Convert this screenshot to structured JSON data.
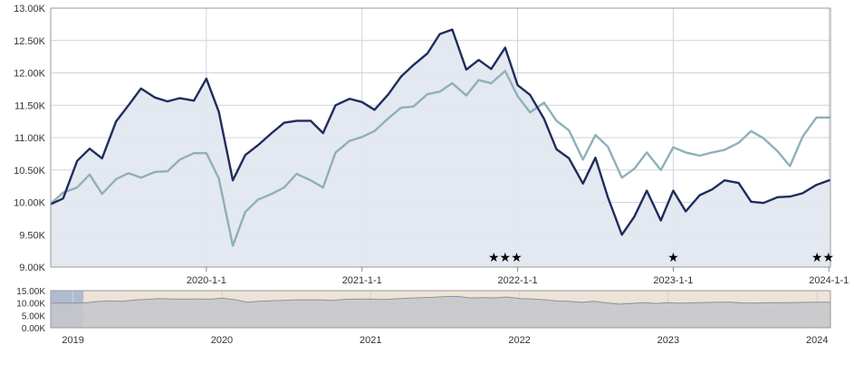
{
  "chart_data": {
    "type": "line",
    "colors": {
      "series_dark": "#1f2d5c",
      "series_light": "#8fb0b8",
      "area_fill": "#e3e7ef",
      "plot_border": "#9a9a9a",
      "grid": "#cfd3da",
      "navigator_shade": "#ede3d6",
      "navigator_selected": "#a9b6d1",
      "navigator_area": "#c6c7cc"
    },
    "y_ticks": [
      "9.00K",
      "9.50K",
      "10.00K",
      "10.50K",
      "11.00K",
      "11.50K",
      "12.00K",
      "12.50K",
      "13.00K"
    ],
    "x_ticks": [
      {
        "label": "2020-1-1",
        "x": 2020.0
      },
      {
        "label": "2021-1-1",
        "x": 2021.0
      },
      {
        "label": "2022-1-1",
        "x": 2022.0
      },
      {
        "label": "2023-1-1",
        "x": 2023.0
      },
      {
        "label": "2024-1-1",
        "x": 2024.0
      }
    ],
    "ylim": [
      9000,
      13000
    ],
    "xlim": [
      2019.0,
      2024.01
    ],
    "grid": true,
    "legend": "none",
    "series": [
      {
        "color": "#1f2d5c",
        "x": [
          2019.0,
          2019.08,
          2019.17,
          2019.25,
          2019.33,
          2019.42,
          2019.5,
          2019.58,
          2019.67,
          2019.75,
          2019.83,
          2019.92,
          2020.0,
          2020.08,
          2020.17,
          2020.25,
          2020.33,
          2020.42,
          2020.5,
          2020.58,
          2020.67,
          2020.75,
          2020.83,
          2020.92,
          2021.0,
          2021.08,
          2021.17,
          2021.25,
          2021.33,
          2021.42,
          2021.5,
          2021.58,
          2021.67,
          2021.75,
          2021.83,
          2021.92,
          2022.0,
          2022.08,
          2022.17,
          2022.25,
          2022.33,
          2022.42,
          2022.5,
          2022.58,
          2022.67,
          2022.75,
          2022.83,
          2022.92,
          2023.0,
          2023.08,
          2023.17,
          2023.25,
          2023.33,
          2023.42,
          2023.5,
          2023.58,
          2023.67,
          2023.75,
          2023.83,
          2023.92,
          2024.0,
          2024.01
        ],
        "values": [
          9970,
          10060,
          10640,
          10830,
          10680,
          11250,
          11500,
          11760,
          11620,
          11560,
          11610,
          11570,
          11910,
          11400,
          10340,
          10730,
          10880,
          11070,
          11230,
          11260,
          11260,
          11070,
          11500,
          11600,
          11550,
          11430,
          11670,
          11940,
          12120,
          12300,
          12600,
          12670,
          12050,
          12200,
          12060,
          12390,
          11810,
          11660,
          11290,
          10820,
          10680,
          10290,
          10690,
          10080,
          9500,
          9780,
          10180,
          9720,
          10180,
          9860,
          10110,
          10200,
          10340,
          10300,
          10010,
          9990,
          10080,
          10090,
          10140,
          10270,
          10340,
          10340
        ]
      },
      {
        "color": "#8fb0b8",
        "x": [
          2019.0,
          2019.08,
          2019.17,
          2019.25,
          2019.33,
          2019.42,
          2019.5,
          2019.58,
          2019.67,
          2019.75,
          2019.83,
          2019.92,
          2020.0,
          2020.08,
          2020.17,
          2020.25,
          2020.33,
          2020.42,
          2020.5,
          2020.58,
          2020.67,
          2020.75,
          2020.83,
          2020.92,
          2021.0,
          2021.08,
          2021.17,
          2021.25,
          2021.33,
          2021.42,
          2021.5,
          2021.58,
          2021.67,
          2021.75,
          2021.83,
          2021.92,
          2022.0,
          2022.08,
          2022.17,
          2022.25,
          2022.33,
          2022.42,
          2022.5,
          2022.58,
          2022.67,
          2022.75,
          2022.83,
          2022.92,
          2023.0,
          2023.08,
          2023.17,
          2023.25,
          2023.33,
          2023.42,
          2023.5,
          2023.58,
          2023.67,
          2023.75,
          2023.83,
          2023.92,
          2024.0,
          2024.01
        ],
        "values": [
          9980,
          10150,
          10230,
          10430,
          10130,
          10360,
          10450,
          10380,
          10470,
          10480,
          10660,
          10760,
          10760,
          10370,
          9330,
          9850,
          10040,
          10130,
          10230,
          10440,
          10340,
          10230,
          10770,
          10950,
          11010,
          11100,
          11300,
          11460,
          11480,
          11670,
          11710,
          11840,
          11650,
          11890,
          11840,
          12030,
          11640,
          11390,
          11540,
          11260,
          11110,
          10660,
          11040,
          10860,
          10380,
          10520,
          10770,
          10500,
          10850,
          10770,
          10720,
          10770,
          10810,
          10920,
          11100,
          10990,
          10790,
          10560,
          11010,
          11310,
          11310,
          11310
        ]
      }
    ],
    "markers": [
      {
        "symbol": "★★★",
        "x": 2021.92
      },
      {
        "symbol": "★",
        "x": 2023.0
      },
      {
        "symbol": "★★",
        "x": 2023.99
      }
    ],
    "navigator": {
      "y_ticks": [
        "0.00K",
        "5.00K",
        "10.00K",
        "15.00K"
      ],
      "x_ticks": [
        "2019",
        "2020",
        "2021",
        "2022",
        "2023",
        "2024"
      ],
      "xlim": [
        2018.85,
        2024.09
      ],
      "ylim": [
        0,
        15000
      ],
      "selected_range": [
        2018.85,
        2019.07
      ]
    }
  }
}
